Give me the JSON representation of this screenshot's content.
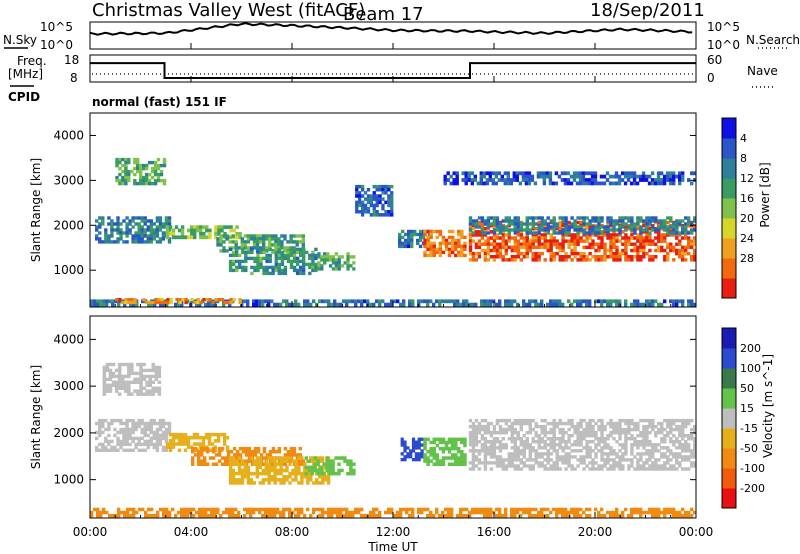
{
  "header": {
    "title": "Christmas Valley West (fitACF)",
    "beam": "Beam 17",
    "date": "18/Sep/2011"
  },
  "scan_panel": {
    "left_label": "N.Sky",
    "right_label": "N.Search",
    "y_ticks": [
      "10^5",
      "10^0"
    ]
  },
  "freq_panel": {
    "left_label_line1": "Freq.",
    "left_label_line2": "[MHz]",
    "right_label": "Nave",
    "left_ticks": [
      "18",
      "8"
    ],
    "right_ticks": [
      "60",
      "0"
    ]
  },
  "cpid": {
    "label": "CPID",
    "mode_text": "normal (fast) 151 IF"
  },
  "x_axis": {
    "label": "Time UT",
    "ticks": [
      "00:00",
      "04:00",
      "08:00",
      "12:00",
      "16:00",
      "20:00",
      "00:00"
    ]
  },
  "chart_data": [
    {
      "type": "line",
      "name": "noise",
      "x": [
        0,
        3,
        6,
        9,
        12,
        15,
        18,
        21,
        24
      ],
      "y": [
        3,
        3,
        4.5,
        4,
        3.5,
        3.5,
        3,
        3.5,
        3
      ],
      "ylim": [
        0,
        5
      ],
      "scale": "log"
    },
    {
      "type": "line",
      "name": "frequency",
      "x": [
        0,
        2.95,
        2.95,
        15.05,
        15.05,
        24
      ],
      "y": [
        15,
        15,
        9.5,
        9.5,
        15,
        15
      ],
      "ylim": [
        8,
        18
      ],
      "xlabel": "",
      "ylabel": "Freq. [MHz]"
    },
    {
      "type": "heatmap",
      "title": "",
      "xlabel": "",
      "ylabel": "Slant Range [km]",
      "xlim": [
        0,
        24
      ],
      "ylim": [
        180,
        4500
      ],
      "y_ticks": [
        1000,
        2000,
        3000,
        4000
      ],
      "colorbar": {
        "label": "Power [dB]",
        "ticks": [
          "4",
          "8",
          "12",
          "16",
          "20",
          "24",
          "28"
        ],
        "colors": [
          "#1010e6",
          "#2a56c8",
          "#2e7f9c",
          "#3a9c63",
          "#7fc24a",
          "#d6d62a",
          "#f0a020",
          "#f26a10",
          "#e81e10"
        ]
      },
      "regions": [
        {
          "t": [
            0.2,
            3.2
          ],
          "r": [
            1600,
            2200
          ],
          "v": 10
        },
        {
          "t": [
            1.0,
            3.0
          ],
          "r": [
            2900,
            3500
          ],
          "v": 14
        },
        {
          "t": [
            3.0,
            6.0
          ],
          "r": [
            1700,
            2000
          ],
          "v": 16
        },
        {
          "t": [
            5.0,
            8.5
          ],
          "r": [
            1400,
            1800
          ],
          "v": 13
        },
        {
          "t": [
            5.5,
            9.0
          ],
          "r": [
            900,
            1500
          ],
          "v": 12
        },
        {
          "t": [
            9.0,
            10.5
          ],
          "r": [
            1000,
            1400
          ],
          "v": 14
        },
        {
          "t": [
            10.5,
            12.0
          ],
          "r": [
            2200,
            2900
          ],
          "v": 8
        },
        {
          "t": [
            12.2,
            13.5
          ],
          "r": [
            1500,
            1900
          ],
          "v": 9
        },
        {
          "t": [
            13.2,
            14.9
          ],
          "r": [
            1300,
            1900
          ],
          "v": 25
        },
        {
          "t": [
            15.0,
            24.0
          ],
          "r": [
            1200,
            2100
          ],
          "v": 27
        },
        {
          "t": [
            15.0,
            24.0
          ],
          "r": [
            1800,
            2200
          ],
          "v": 10
        },
        {
          "t": [
            14.0,
            24.0
          ],
          "r": [
            2900,
            3200
          ],
          "v": 7
        },
        {
          "t": [
            0.0,
            24.0
          ],
          "r": [
            200,
            350
          ],
          "v": 9
        },
        {
          "t": [
            1.0,
            6.0
          ],
          "r": [
            250,
            380
          ],
          "v": 24
        }
      ]
    },
    {
      "type": "heatmap",
      "title": "",
      "xlabel": "Time UT",
      "ylabel": "Slant Range [km]",
      "xlim": [
        0,
        24
      ],
      "ylim": [
        180,
        4500
      ],
      "y_ticks": [
        1000,
        2000,
        3000,
        4000
      ],
      "colorbar": {
        "label": "Velocity [m s^-1]",
        "ticks": [
          "200",
          "100",
          "50",
          "15",
          "-15",
          "-50",
          "-100",
          "-200"
        ],
        "colors": [
          "#1a1ab4",
          "#2a4ad0",
          "#3a7a4a",
          "#62c24a",
          "#bebebe",
          "#e6b01c",
          "#f08a10",
          "#f25a0c",
          "#e81010"
        ]
      },
      "regions": [
        {
          "t": [
            0.2,
            3.2
          ],
          "r": [
            1600,
            2300
          ],
          "v": 0
        },
        {
          "t": [
            0.5,
            2.8
          ],
          "r": [
            2800,
            3500
          ],
          "v": 0
        },
        {
          "t": [
            3.0,
            5.5
          ],
          "r": [
            1600,
            2000
          ],
          "v": -30
        },
        {
          "t": [
            4.0,
            8.5
          ],
          "r": [
            1300,
            1700
          ],
          "v": -60
        },
        {
          "t": [
            5.5,
            9.5
          ],
          "r": [
            900,
            1500
          ],
          "v": -40
        },
        {
          "t": [
            8.5,
            10.5
          ],
          "r": [
            1100,
            1500
          ],
          "v": 40
        },
        {
          "t": [
            12.3,
            13.2
          ],
          "r": [
            1400,
            1900
          ],
          "v": 180
        },
        {
          "t": [
            13.2,
            14.9
          ],
          "r": [
            1300,
            1900
          ],
          "v": 30
        },
        {
          "t": [
            15.0,
            24.0
          ],
          "r": [
            1200,
            2300
          ],
          "v": 0
        },
        {
          "t": [
            0.0,
            24.0
          ],
          "r": [
            200,
            400
          ],
          "v": -60
        }
      ]
    }
  ]
}
